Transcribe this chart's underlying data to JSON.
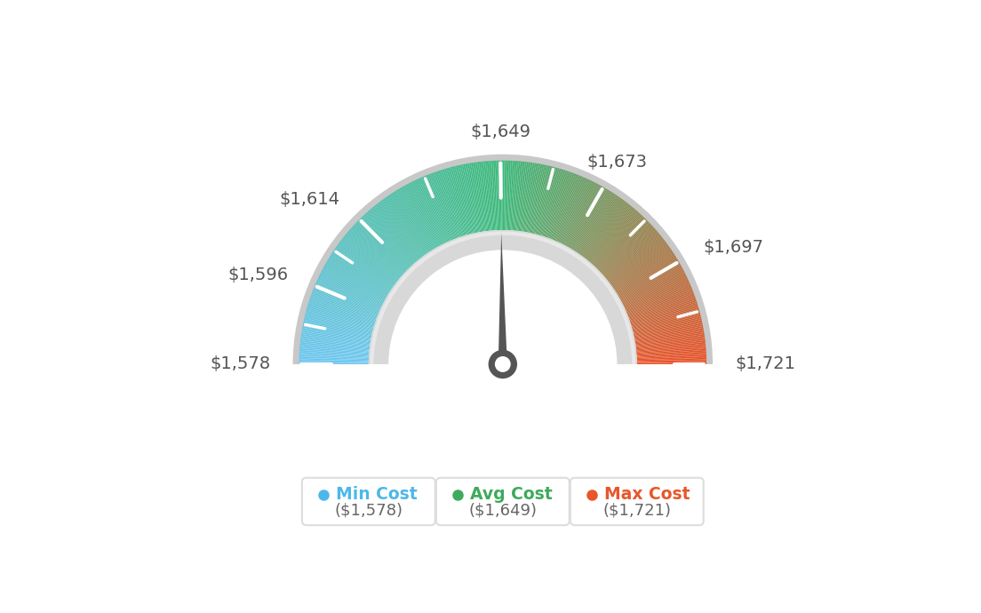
{
  "min_val": 1578,
  "max_val": 1721,
  "avg_val": 1649,
  "tick_labels": [
    "$1,578",
    "$1,596",
    "$1,614",
    "$1,649",
    "$1,673",
    "$1,697",
    "$1,721"
  ],
  "tick_values": [
    1578,
    1596,
    1614,
    1649,
    1673,
    1697,
    1721
  ],
  "legend_items": [
    {
      "label": "Min Cost",
      "value": "($1,578)",
      "color": "#4db8e8"
    },
    {
      "label": "Avg Cost",
      "value": "($1,649)",
      "color": "#3daa5c"
    },
    {
      "label": "Max Cost",
      "value": "($1,721)",
      "color": "#e8572a"
    }
  ],
  "bg_color": "#ffffff",
  "color_min": "#6ec6f0",
  "color_center": "#3db87a",
  "color_max": "#e8522a",
  "needle_color": "#555555",
  "needle_value": 1649
}
